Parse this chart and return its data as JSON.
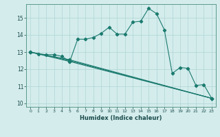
{
  "xlabel": "Humidex (Indice chaleur)",
  "bg_color": "#d4ecec",
  "line_color": "#1a7a6e",
  "grid_color": "#aed4d4",
  "xlim": [
    -0.5,
    23.5
  ],
  "ylim": [
    9.8,
    15.8
  ],
  "xticks": [
    0,
    1,
    2,
    3,
    4,
    5,
    6,
    7,
    8,
    9,
    10,
    11,
    12,
    13,
    14,
    15,
    16,
    17,
    18,
    19,
    20,
    21,
    22,
    23
  ],
  "yticks": [
    10,
    11,
    12,
    13,
    14,
    15
  ],
  "series1_x": [
    0,
    1,
    2,
    3,
    4,
    5,
    6,
    7,
    8,
    9,
    10,
    11,
    12,
    13,
    14,
    15,
    16,
    17,
    18,
    19,
    20,
    21,
    22,
    23
  ],
  "series1_y": [
    13.0,
    12.9,
    12.85,
    12.85,
    12.75,
    12.45,
    13.75,
    13.75,
    13.85,
    14.1,
    14.45,
    14.05,
    14.05,
    14.75,
    14.8,
    15.55,
    15.25,
    14.3,
    11.75,
    12.1,
    12.05,
    11.05,
    11.1,
    10.3
  ],
  "series2_x": [
    0,
    5,
    23
  ],
  "series2_y": [
    13.0,
    12.45,
    10.3
  ],
  "series3_x": [
    0,
    5,
    23
  ],
  "series3_y": [
    13.0,
    12.5,
    10.3
  ],
  "series4_x": [
    0,
    5,
    23
  ],
  "series4_y": [
    13.0,
    12.55,
    10.3
  ]
}
